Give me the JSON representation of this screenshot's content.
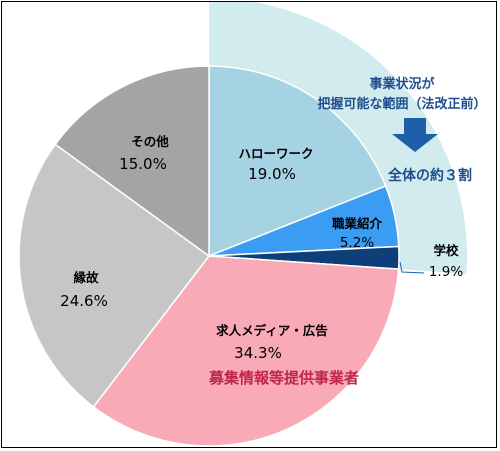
{
  "chart_data": {
    "type": "pie",
    "slices": [
      {
        "name": "ハローワーク",
        "value": 19.0,
        "label": "19.0%",
        "color": "#a6d3e3"
      },
      {
        "name": "職業紹介",
        "value": 5.2,
        "label": "5.2%",
        "color": "#3a9cf2"
      },
      {
        "name": "学校",
        "value": 1.9,
        "label": "1.9%",
        "color": "#0e3f78"
      },
      {
        "name": "求人メディア・広告",
        "value": 34.3,
        "label": "34.3%",
        "color": "#f8aab6"
      },
      {
        "name": "縁故",
        "value": 24.6,
        "label": "24.6%",
        "color": "#c6c6c6"
      },
      {
        "name": "その他",
        "value": 15.0,
        "label": "15.0%",
        "color": "#a4a4a4"
      }
    ],
    "annotations": {
      "highlight_text_line1": "事業状況が",
      "highlight_text_line2": "把握可能な範囲（法改正前）",
      "highlight_result": "全体の約３割",
      "recruit_group": "募集情報等提供事業者"
    },
    "colors": {
      "highlight_band": "#d2ebee",
      "arrow": "#1f5ea8",
      "note_text": "#1f4e8c",
      "recruit_text": "#c0254d"
    }
  }
}
